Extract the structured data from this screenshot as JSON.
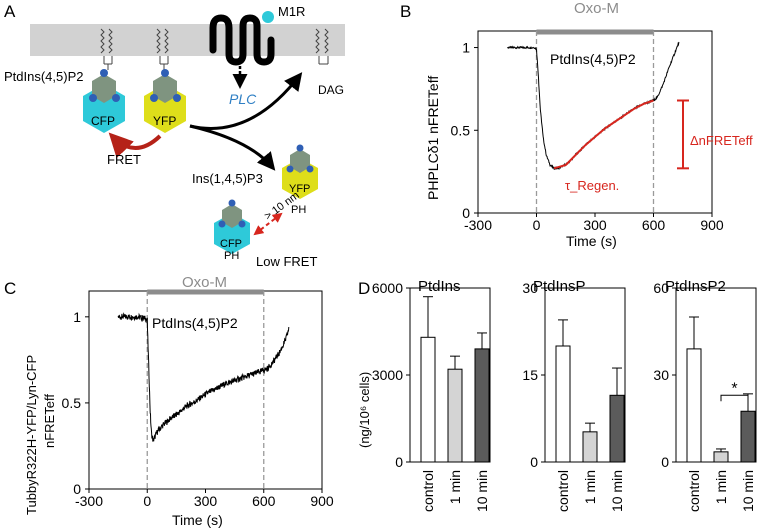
{
  "panels": {
    "A": {
      "letter": "A",
      "receptor": "M1R",
      "lipid": "PtdIns(4,5)P2",
      "enzyme": "PLC",
      "dag": "DAG",
      "cfp": "CFP",
      "yfp": "YFP",
      "fret": "FRET",
      "ip3": "Ins(1,4,5)P3",
      "distance": "> 10 nm",
      "ph": "PH",
      "low_fret": "Low FRET"
    },
    "B": {
      "letter": "B",
      "agonist": "Oxo-M",
      "trace_label": "PtdIns(4,5)P2",
      "ylabel": "PHPLCδ1 nFRETeff",
      "xlabel": "Time (s)",
      "tau_label": "τ_Regen.",
      "delta_label": "ΔnFRETeff"
    },
    "C": {
      "letter": "C",
      "agonist": "Oxo-M",
      "trace_label": "PtdIns(4,5)P2",
      "ylabel_line1": "TubbyR322H-YFP/Lyn-CFP",
      "ylabel_line2": "nFRETeff",
      "xlabel": "Time (s)"
    },
    "D": {
      "letter": "D",
      "ylabel": "(ng/10⁶ cells)",
      "significance": "*"
    }
  },
  "colors": {
    "cfp": "#2ec9d9",
    "yfp": "#dede1a",
    "headgroup": "#7f9480",
    "phosphate": "#2f5fb5",
    "membrane": "#d2d2d2",
    "fit": "#d7261e",
    "arrow_red": "#b52218",
    "plc_blue": "#2f7fc4",
    "oxo_bar": "#8c8c8c",
    "dashed": "#9a9a9a"
  },
  "chart_data": [
    {
      "type": "line",
      "panel": "B",
      "title": "PtdIns(4,5)P2",
      "xlabel": "Time (s)",
      "ylabel": "PHPLCδ1 nFRETeff",
      "xlim": [
        -300,
        900
      ],
      "ylim": [
        0,
        1.1
      ],
      "xticks": [
        -300,
        0,
        300,
        600,
        900
      ],
      "yticks": [
        0,
        0.5,
        1
      ],
      "ytick_labels": [
        "0",
        "0.5",
        "1"
      ],
      "stim_bar": {
        "label": "Oxo-M",
        "start": 0,
        "end": 600
      },
      "series": [
        {
          "name": "nFRETeff",
          "x": [
            -150,
            -100,
            -50,
            -10,
            0,
            10,
            20,
            35,
            50,
            70,
            90,
            110,
            130,
            160,
            200,
            250,
            300,
            350,
            400,
            450,
            500,
            550,
            600,
            620,
            650,
            680,
            710,
            730
          ],
          "y": [
            1.0,
            1.0,
            1.0,
            1.0,
            0.99,
            0.82,
            0.62,
            0.45,
            0.35,
            0.29,
            0.27,
            0.27,
            0.28,
            0.3,
            0.35,
            0.41,
            0.46,
            0.51,
            0.55,
            0.59,
            0.63,
            0.66,
            0.68,
            0.7,
            0.78,
            0.88,
            0.97,
            1.03
          ]
        },
        {
          "name": "fit",
          "x": [
            90,
            150,
            200,
            250,
            300,
            350,
            400,
            450,
            500,
            550,
            600
          ],
          "y": [
            0.27,
            0.29,
            0.35,
            0.41,
            0.46,
            0.51,
            0.55,
            0.59,
            0.63,
            0.66,
            0.68
          ]
        }
      ],
      "annotations": [
        "τ_Regen.",
        "ΔnFRETeff"
      ]
    },
    {
      "type": "line",
      "panel": "C",
      "title": "PtdIns(4,5)P2",
      "xlabel": "Time (s)",
      "ylabel": "TubbyR322H-YFP/Lyn-CFP nFRETeff",
      "xlim": [
        -300,
        900
      ],
      "ylim": [
        0,
        1.15
      ],
      "xticks": [
        -300,
        0,
        300,
        600,
        900
      ],
      "yticks": [
        0,
        0.5,
        1
      ],
      "ytick_labels": [
        "0",
        "0.5",
        "1"
      ],
      "stim_bar": {
        "label": "Oxo-M",
        "start": 0,
        "end": 600
      },
      "series": [
        {
          "name": "nFRETeff",
          "x": [
            -150,
            -100,
            -50,
            -10,
            0,
            8,
            15,
            22,
            30,
            50,
            80,
            120,
            160,
            200,
            250,
            300,
            350,
            400,
            450,
            500,
            550,
            600,
            620,
            650,
            680,
            710,
            730
          ],
          "y": [
            1.0,
            1.0,
            1.0,
            0.99,
            0.98,
            0.7,
            0.45,
            0.32,
            0.28,
            0.33,
            0.37,
            0.41,
            0.44,
            0.48,
            0.51,
            0.55,
            0.58,
            0.61,
            0.63,
            0.65,
            0.67,
            0.69,
            0.7,
            0.74,
            0.79,
            0.86,
            0.93
          ]
        }
      ]
    },
    {
      "type": "bar",
      "panel": "D",
      "title": "PtdIns",
      "categories": [
        "control",
        "1 min",
        "10 min"
      ],
      "values": [
        4300,
        3200,
        3900
      ],
      "errors": [
        1400,
        450,
        550
      ],
      "ylim": [
        0,
        6000
      ],
      "yticks": [
        0,
        3000,
        6000
      ],
      "ytick_labels": [
        "0",
        "3000",
        "6000"
      ],
      "ylabel": "(ng/10⁶ cells)"
    },
    {
      "type": "bar",
      "panel": "D",
      "title": "PtdInsP",
      "categories": [
        "control",
        "1 min",
        "10 min"
      ],
      "values": [
        20,
        5.2,
        11.5
      ],
      "errors": [
        4.5,
        1.5,
        4.7
      ],
      "ylim": [
        0,
        30
      ],
      "yticks": [
        0,
        15,
        30
      ],
      "ytick_labels": [
        "0",
        "15",
        "30"
      ]
    },
    {
      "type": "bar",
      "panel": "D",
      "title": "PtdInsP2",
      "categories": [
        "control",
        "1 min",
        "10 min"
      ],
      "values": [
        39,
        3.5,
        17.5
      ],
      "errors": [
        11,
        1,
        6
      ],
      "ylim": [
        0,
        60
      ],
      "yticks": [
        0,
        30,
        60
      ],
      "ytick_labels": [
        "0",
        "30",
        "60"
      ],
      "significance": "*"
    }
  ]
}
